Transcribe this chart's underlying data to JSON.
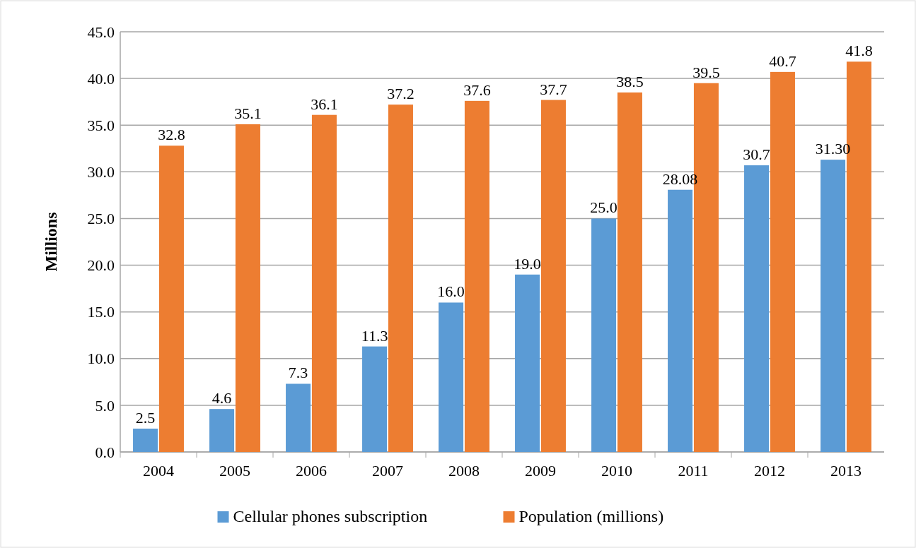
{
  "chart_data": {
    "type": "bar",
    "ylabel": "Millions",
    "categories": [
      "2004",
      "2005",
      "2006",
      "2007",
      "2008",
      "2009",
      "2010",
      "2011",
      "2012",
      "2013"
    ],
    "series": [
      {
        "name": "Cellular phones subscription",
        "color": "#5b9bd5",
        "values": [
          2.5,
          4.6,
          7.3,
          11.3,
          16.0,
          19.0,
          25.0,
          28.08,
          30.7,
          31.3
        ],
        "value_labels": [
          "2.5",
          "4.6",
          "7.3",
          "11.3",
          "16.0",
          "19.0",
          "25.0",
          "28.08",
          "30.7",
          "31.30"
        ]
      },
      {
        "name": "Population (millions)",
        "color": "#ed7d31",
        "values": [
          32.8,
          35.1,
          36.1,
          37.2,
          37.6,
          37.7,
          38.5,
          39.5,
          40.7,
          41.8
        ],
        "value_labels": [
          "32.8",
          "35.1",
          "36.1",
          "37.2",
          "37.6",
          "37.7",
          "38.5",
          "39.5",
          "40.7",
          "41.8"
        ]
      }
    ],
    "ylim": [
      0,
      45
    ],
    "yticks": [
      {
        "value": 0,
        "label": "0.0"
      },
      {
        "value": 5,
        "label": "5.0"
      },
      {
        "value": 10,
        "label": "10.0"
      },
      {
        "value": 15,
        "label": "15.0"
      },
      {
        "value": 20,
        "label": "20.0"
      },
      {
        "value": 25,
        "label": "25.0"
      },
      {
        "value": 30,
        "label": "30.0"
      },
      {
        "value": 35,
        "label": "35.0"
      },
      {
        "value": 40,
        "label": "40.0"
      },
      {
        "value": 45,
        "label": "45.0"
      }
    ],
    "grid": "y",
    "legend": "bottom"
  }
}
